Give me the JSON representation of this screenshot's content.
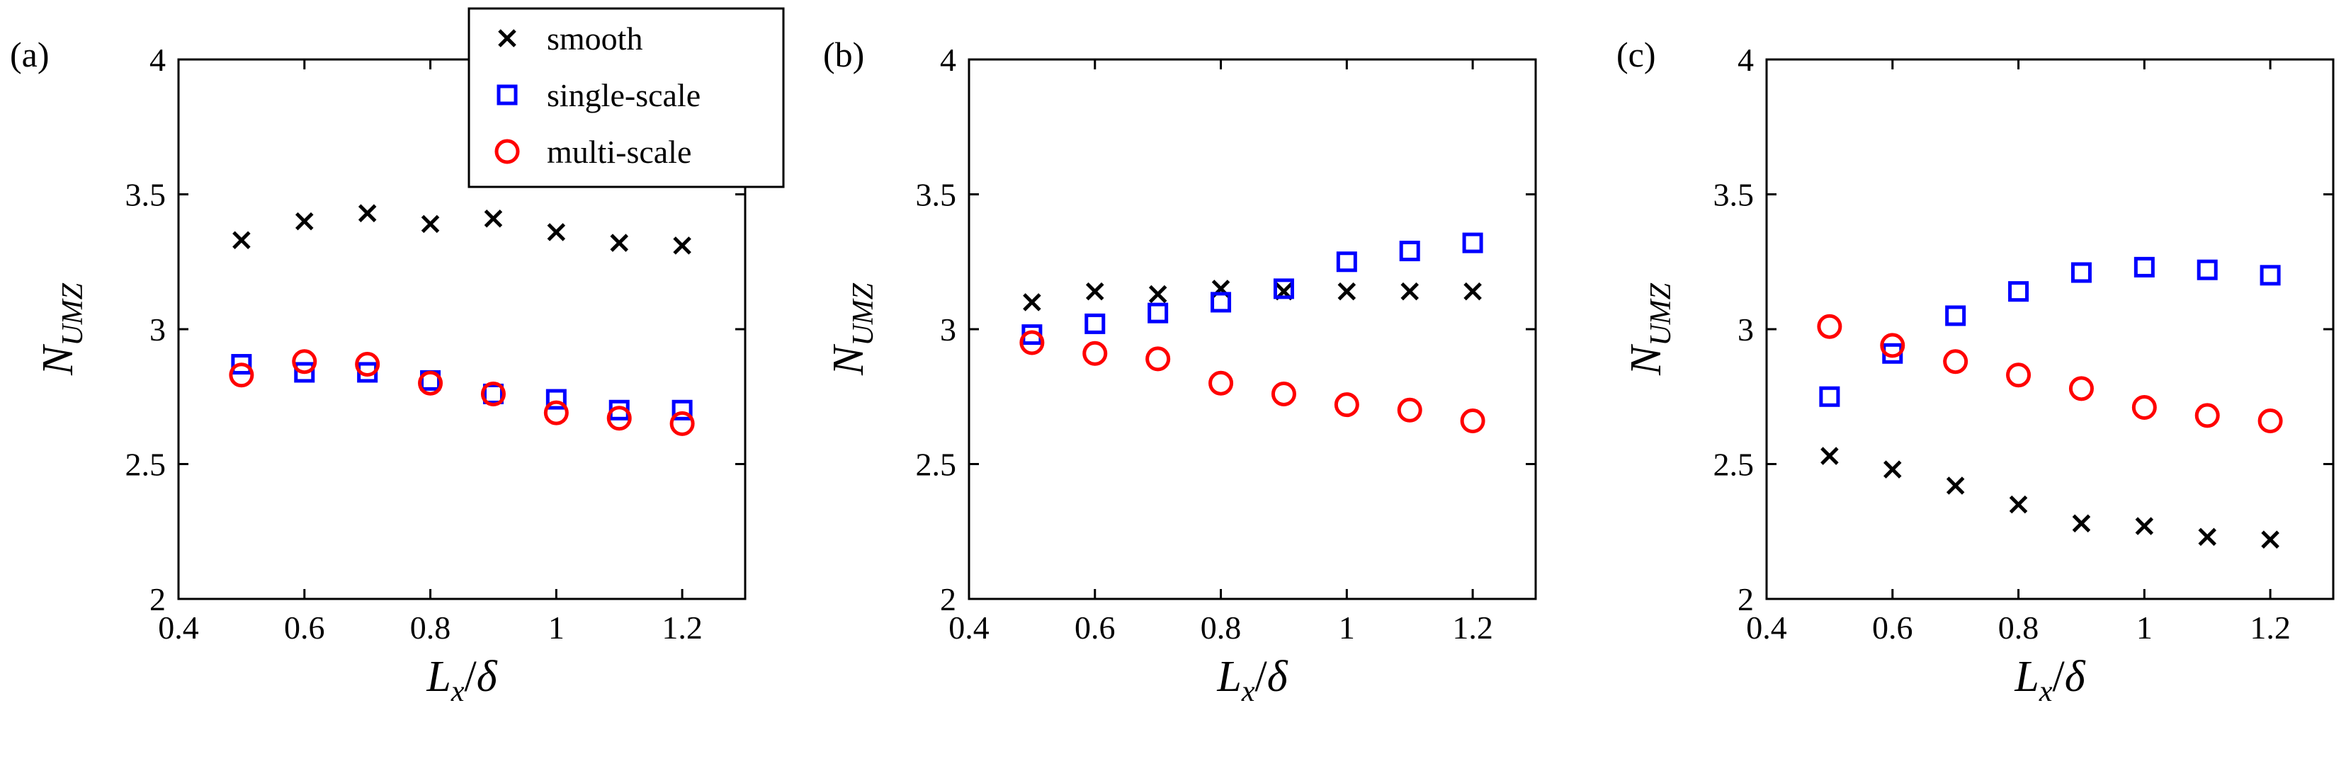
{
  "colors": {
    "smooth": "#000000",
    "single-scale": "#0000ff",
    "multi-scale": "#ff0000",
    "axes": "#000000",
    "background": "#ffffff"
  },
  "legend": [
    {
      "key": "smooth",
      "label": "smooth",
      "marker": "x"
    },
    {
      "key": "single-scale",
      "label": "single-scale",
      "marker": "square"
    },
    {
      "key": "multi-scale",
      "label": "multi-scale",
      "marker": "circle"
    }
  ],
  "chart_data": [
    {
      "type": "scatter",
      "panel_label": "(a)",
      "xlabel": "L_x/δ",
      "ylabel": "N_UMZ",
      "xlim": [
        0.4,
        1.3
      ],
      "ylim": [
        2,
        4
      ],
      "xticks": [
        0.4,
        0.6,
        0.8,
        1,
        1.2
      ],
      "xtick_labels": [
        "0.4",
        "0.6",
        "0.8",
        "1",
        "1.2"
      ],
      "yticks": [
        2,
        2.5,
        3,
        3.5,
        4
      ],
      "ytick_labels": [
        "2",
        "2.5",
        "3",
        "3.5",
        "4"
      ],
      "legend_position": "top-right",
      "x": [
        0.5,
        0.6,
        0.7,
        0.8,
        0.9,
        1.0,
        1.1,
        1.2
      ],
      "series": [
        {
          "name": "smooth",
          "marker": "x",
          "values": [
            3.33,
            3.4,
            3.43,
            3.39,
            3.41,
            3.36,
            3.32,
            3.31
          ]
        },
        {
          "name": "single-scale",
          "marker": "square",
          "values": [
            2.87,
            2.84,
            2.84,
            2.81,
            2.76,
            2.74,
            2.7,
            2.7
          ]
        },
        {
          "name": "multi-scale",
          "marker": "circle",
          "values": [
            2.83,
            2.88,
            2.87,
            2.8,
            2.76,
            2.69,
            2.67,
            2.65
          ]
        }
      ]
    },
    {
      "type": "scatter",
      "panel_label": "(b)",
      "xlabel": "L_x/δ",
      "ylabel": "N_UMZ",
      "xlim": [
        0.4,
        1.3
      ],
      "ylim": [
        2,
        4
      ],
      "xticks": [
        0.4,
        0.6,
        0.8,
        1,
        1.2
      ],
      "xtick_labels": [
        "0.4",
        "0.6",
        "0.8",
        "1",
        "1.2"
      ],
      "yticks": [
        2,
        2.5,
        3,
        3.5,
        4
      ],
      "ytick_labels": [
        "2",
        "2.5",
        "3",
        "3.5",
        "4"
      ],
      "x": [
        0.5,
        0.6,
        0.7,
        0.8,
        0.9,
        1.0,
        1.1,
        1.2
      ],
      "series": [
        {
          "name": "smooth",
          "marker": "x",
          "values": [
            3.1,
            3.14,
            3.13,
            3.15,
            3.14,
            3.14,
            3.14,
            3.14
          ]
        },
        {
          "name": "single-scale",
          "marker": "square",
          "values": [
            2.98,
            3.02,
            3.06,
            3.1,
            3.15,
            3.25,
            3.29,
            3.32
          ]
        },
        {
          "name": "multi-scale",
          "marker": "circle",
          "values": [
            2.95,
            2.91,
            2.89,
            2.8,
            2.76,
            2.72,
            2.7,
            2.66
          ]
        }
      ]
    },
    {
      "type": "scatter",
      "panel_label": "(c)",
      "xlabel": "L_x/δ",
      "ylabel": "N_UMZ",
      "xlim": [
        0.4,
        1.3
      ],
      "ylim": [
        2,
        4
      ],
      "xticks": [
        0.4,
        0.6,
        0.8,
        1,
        1.2
      ],
      "xtick_labels": [
        "0.4",
        "0.6",
        "0.8",
        "1",
        "1.2"
      ],
      "yticks": [
        2,
        2.5,
        3,
        3.5,
        4
      ],
      "ytick_labels": [
        "2",
        "2.5",
        "3",
        "3.5",
        "4"
      ],
      "x": [
        0.5,
        0.6,
        0.7,
        0.8,
        0.9,
        1.0,
        1.1,
        1.2
      ],
      "series": [
        {
          "name": "smooth",
          "marker": "x",
          "values": [
            2.53,
            2.48,
            2.42,
            2.35,
            2.28,
            2.27,
            2.23,
            2.22
          ]
        },
        {
          "name": "single-scale",
          "marker": "square",
          "values": [
            2.75,
            2.91,
            3.05,
            3.14,
            3.21,
            3.23,
            3.22,
            3.2
          ]
        },
        {
          "name": "multi-scale",
          "marker": "circle",
          "values": [
            3.01,
            2.94,
            2.88,
            2.83,
            2.78,
            2.71,
            2.68,
            2.66
          ]
        }
      ]
    }
  ]
}
